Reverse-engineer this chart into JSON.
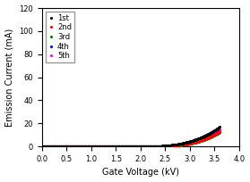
{
  "title": "",
  "xlabel": "Gate Voltage (kV)",
  "ylabel": "Emission Current (mA)",
  "xlim": [
    0.0,
    4.0
  ],
  "ylim": [
    0,
    120
  ],
  "xticks": [
    0.0,
    0.5,
    1.0,
    1.5,
    2.0,
    2.5,
    3.0,
    3.5,
    4.0
  ],
  "yticks": [
    0,
    20,
    40,
    60,
    80,
    100,
    120
  ],
  "series": [
    {
      "label": "1st",
      "color": "black",
      "marker": ".",
      "markersize": 2.5,
      "zorder": 5
    },
    {
      "label": "2nd",
      "color": "red",
      "marker": ".",
      "markersize": 2.5,
      "zorder": 4
    },
    {
      "label": "3rd",
      "color": "green",
      "marker": ".",
      "markersize": 2.5,
      "zorder": 3
    },
    {
      "label": "4th",
      "color": "blue",
      "marker": ".",
      "markersize": 2.5,
      "zorder": 2
    },
    {
      "label": "5th",
      "color": "magenta",
      "marker": ".",
      "markersize": 2.5,
      "zorder": 1
    }
  ],
  "series_params": [
    {
      "onset": 1.85,
      "exponent": 3.2,
      "scale": 2.8
    },
    {
      "onset": 2.05,
      "exponent": 3.2,
      "scale": 3.2
    },
    {
      "onset": 2.08,
      "exponent": 3.2,
      "scale": 3.2
    },
    {
      "onset": 2.06,
      "exponent": 3.2,
      "scale": 3.2
    },
    {
      "onset": 1.95,
      "exponent": 3.2,
      "scale": 3.0
    }
  ],
  "x_start": 0.0,
  "x_end": 3.6,
  "n_points": 300,
  "background_color": "white",
  "legend_loc": "upper left",
  "legend_fontsize": 6,
  "axis_fontsize": 7,
  "tick_fontsize": 6
}
